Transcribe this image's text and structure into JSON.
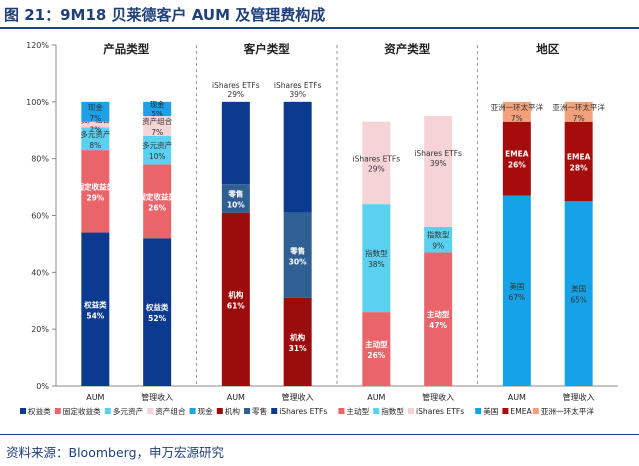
{
  "figure": {
    "title": "图 21：9M18 贝莱德客户 AUM 及管理费构成",
    "source": "资料来源：Bloomberg，申万宏源研究"
  },
  "chart_data": {
    "type": "bar",
    "stacked": true,
    "ylim": [
      0,
      120
    ],
    "yticks": [
      "0%",
      "20%",
      "40%",
      "60%",
      "80%",
      "100%",
      "120%"
    ],
    "groups": [
      {
        "title": "产品类型",
        "bars": [
          {
            "category": "AUM",
            "segments": [
              {
                "name": "权益类",
                "value": 54,
                "label": "54%",
                "color": "#0b3a8f"
              },
              {
                "name": "固定收益类",
                "value": 29,
                "label": "29%",
                "color": "#e9656a"
              },
              {
                "name": "多元资产",
                "value": 8,
                "label": "8%",
                "color": "#5bd1f2"
              },
              {
                "name": "资产组合",
                "value": 2,
                "label": "2%",
                "color": "#f6d3d5"
              },
              {
                "name": "现金",
                "value": 7,
                "label": "7%",
                "color": "#1ea0e8"
              }
            ]
          },
          {
            "category": "管理收入",
            "segments": [
              {
                "name": "权益类",
                "value": 52,
                "label": "52%",
                "color": "#0b3a8f"
              },
              {
                "name": "固定收益类",
                "value": 26,
                "label": "26%",
                "color": "#e9656a"
              },
              {
                "name": "多元资产",
                "value": 10,
                "label": "10%",
                "color": "#5bd1f2"
              },
              {
                "name": "资产组合",
                "value": 7,
                "label": "7%",
                "color": "#f6d3d5"
              },
              {
                "name": "现金",
                "value": 5,
                "label": "5%",
                "color": "#1ea0e8"
              }
            ]
          }
        ]
      },
      {
        "title": "客户类型",
        "bars": [
          {
            "category": "AUM",
            "segments": [
              {
                "name": "机构",
                "value": 61,
                "label": "61%",
                "color": "#9b0d0d"
              },
              {
                "name": "零售",
                "value": 10,
                "label": "10%",
                "color": "#2f5f93"
              },
              {
                "name": "iShares ETFs",
                "value": 29,
                "label": "29%",
                "color": "#0b3a8f"
              }
            ]
          },
          {
            "category": "管理收入",
            "segments": [
              {
                "name": "机构",
                "value": 31,
                "label": "31%",
                "color": "#9b0d0d"
              },
              {
                "name": "零售",
                "value": 30,
                "label": "30%",
                "color": "#2f5f93"
              },
              {
                "name": "iShares ETFs",
                "value": 39,
                "label": "39%",
                "color": "#0b3a8f"
              }
            ]
          }
        ]
      },
      {
        "title": "资产类型",
        "bars": [
          {
            "category": "AUM",
            "segments": [
              {
                "name": "主动型",
                "value": 26,
                "label": "26%",
                "color": "#e9656a"
              },
              {
                "name": "指数型",
                "value": 38,
                "label": "38%",
                "color": "#5bd1f2"
              },
              {
                "name": "iShares ETFs",
                "value": 29,
                "label": "29%",
                "color": "#f6d3d5"
              }
            ]
          },
          {
            "category": "管理收入",
            "segments": [
              {
                "name": "主动型",
                "value": 47,
                "label": "47%",
                "color": "#e9656a"
              },
              {
                "name": "指数型",
                "value": 9,
                "label": "9%",
                "color": "#5bd1f2"
              },
              {
                "name": "iShares ETFs",
                "value": 39,
                "label": "39%",
                "color": "#f6d3d5"
              }
            ]
          }
        ]
      },
      {
        "title": "地区",
        "bars": [
          {
            "category": "AUM",
            "segments": [
              {
                "name": "美国",
                "value": 67,
                "label": "67%",
                "color": "#14a3e6"
              },
              {
                "name": "EMEA",
                "value": 26,
                "label": "26%",
                "color": "#a50d0d"
              },
              {
                "name": "亚洲一环太平洋",
                "value": 7,
                "label": "7%",
                "color": "#f2a17a"
              }
            ]
          },
          {
            "category": "管理收入",
            "segments": [
              {
                "name": "美国",
                "value": 65,
                "label": "65%",
                "color": "#14a3e6"
              },
              {
                "name": "EMEA",
                "value": 28,
                "label": "28%",
                "color": "#a50d0d"
              },
              {
                "name": "亚洲一环太平洋",
                "value": 7,
                "label": "7%",
                "color": "#f2a17a"
              }
            ]
          }
        ]
      }
    ],
    "legend": {
      "position": "bottom",
      "items": [
        {
          "name": "权益类",
          "color": "#0b3a8f"
        },
        {
          "name": "固定收益类",
          "color": "#e9656a"
        },
        {
          "name": "多元资产",
          "color": "#5bd1f2"
        },
        {
          "name": "资产组合",
          "color": "#f6d3d5"
        },
        {
          "name": "现金",
          "color": "#1ea0e8"
        },
        {
          "name": "机构",
          "color": "#9b0d0d"
        },
        {
          "name": "零售",
          "color": "#2f5f93"
        },
        {
          "name": "iShares ETFs",
          "color": "#0b3a8f"
        },
        {
          "name": "主动型",
          "color": "#e9656a"
        },
        {
          "name": "指数型",
          "color": "#5bd1f2"
        },
        {
          "name": "iShares ETFs",
          "color": "#f6d3d5"
        },
        {
          "name": "美国",
          "color": "#14a3e6"
        },
        {
          "name": "EMEA",
          "color": "#a50d0d"
        },
        {
          "name": "亚洲一环太平洋",
          "color": "#f2a17a"
        }
      ]
    }
  }
}
